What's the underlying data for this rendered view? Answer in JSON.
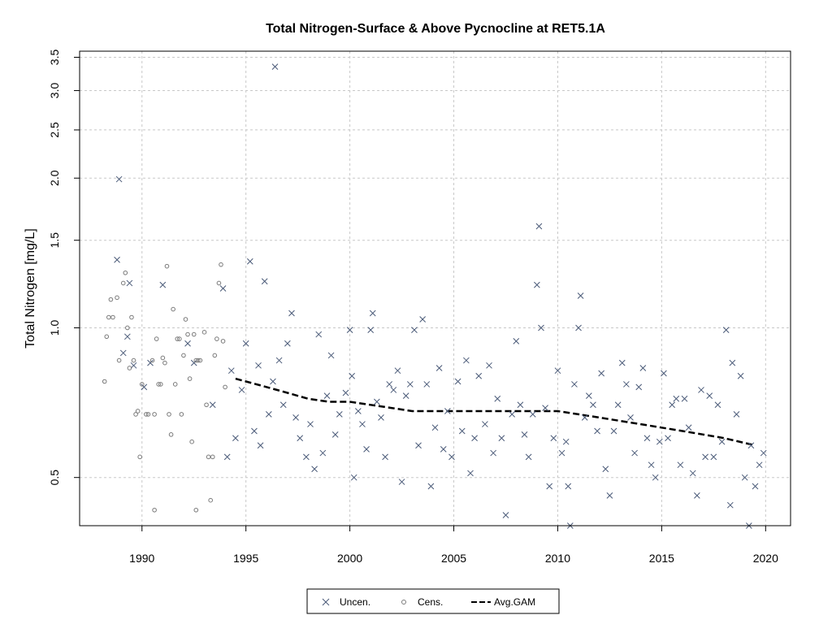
{
  "chart_data": {
    "type": "scatter",
    "title": "Total Nitrogen-Surface & Above Pycnocline at RET5.1A",
    "xlabel": "",
    "ylabel": "Total Nitrogen [mg/L]",
    "x_scale": "linear",
    "y_scale": "log",
    "xlim": [
      1987.0,
      2021.2
    ],
    "ylim": [
      0.4,
      3.6
    ],
    "x_ticks": [
      1990,
      1995,
      2000,
      2005,
      2010,
      2015,
      2020
    ],
    "x_tick_labels": [
      "1990",
      "1995",
      "2000",
      "2005",
      "2010",
      "2015",
      "2020"
    ],
    "y_ticks": [
      0.5,
      1.0,
      1.5,
      2.0,
      2.5,
      3.0,
      3.5
    ],
    "y_tick_labels": [
      "0.5",
      "1.0",
      "1.5",
      "2.0",
      "2.5",
      "3.0",
      "3.5"
    ],
    "grid": true,
    "legend": {
      "position": "bottom-center",
      "entries": [
        "Uncen.",
        "Cens.",
        "Avg.GAM"
      ]
    },
    "series": [
      {
        "name": "Uncen.",
        "marker": "x",
        "color": "#4a5a78",
        "points": [
          [
            1988.8,
            1.37
          ],
          [
            1988.9,
            1.99
          ],
          [
            1989.1,
            0.89
          ],
          [
            1989.3,
            0.96
          ],
          [
            1989.4,
            1.23
          ],
          [
            1989.6,
            0.84
          ],
          [
            1990.1,
            0.76
          ],
          [
            1990.4,
            0.85
          ],
          [
            1991.0,
            1.22
          ],
          [
            1992.2,
            0.93
          ],
          [
            1992.5,
            0.85
          ],
          [
            1993.4,
            0.7
          ],
          [
            1993.9,
            1.2
          ],
          [
            1994.1,
            0.55
          ],
          [
            1994.3,
            0.82
          ],
          [
            1994.5,
            0.6
          ],
          [
            1994.8,
            0.75
          ],
          [
            1995.0,
            0.93
          ],
          [
            1995.2,
            1.36
          ],
          [
            1995.4,
            0.62
          ],
          [
            1995.6,
            0.84
          ],
          [
            1995.7,
            0.58
          ],
          [
            1995.9,
            1.24
          ],
          [
            1996.1,
            0.67
          ],
          [
            1996.3,
            0.78
          ],
          [
            1996.4,
            3.35
          ],
          [
            1996.6,
            0.86
          ],
          [
            1996.8,
            0.7
          ],
          [
            1997.0,
            0.93
          ],
          [
            1997.2,
            1.07
          ],
          [
            1997.4,
            0.66
          ],
          [
            1997.6,
            0.6
          ],
          [
            1997.9,
            0.55
          ],
          [
            1998.1,
            0.64
          ],
          [
            1998.3,
            0.52
          ],
          [
            1998.5,
            0.97
          ],
          [
            1998.7,
            0.56
          ],
          [
            1998.9,
            0.73
          ],
          [
            1999.1,
            0.88
          ],
          [
            1999.3,
            0.61
          ],
          [
            1999.5,
            0.67
          ],
          [
            1999.8,
            0.74
          ],
          [
            2000.0,
            0.99
          ],
          [
            2000.1,
            0.8
          ],
          [
            2000.2,
            0.5
          ],
          [
            2000.4,
            0.68
          ],
          [
            2000.6,
            0.64
          ],
          [
            2000.8,
            0.57
          ],
          [
            2001.0,
            0.99
          ],
          [
            2001.1,
            1.07
          ],
          [
            2001.3,
            0.71
          ],
          [
            2001.5,
            0.66
          ],
          [
            2001.7,
            0.55
          ],
          [
            2001.9,
            0.77
          ],
          [
            2002.1,
            0.75
          ],
          [
            2002.3,
            0.82
          ],
          [
            2002.5,
            0.49
          ],
          [
            2002.7,
            0.73
          ],
          [
            2002.9,
            0.77
          ],
          [
            2003.1,
            0.99
          ],
          [
            2003.3,
            0.58
          ],
          [
            2003.5,
            1.04
          ],
          [
            2003.7,
            0.77
          ],
          [
            2003.9,
            0.48
          ],
          [
            2004.1,
            0.63
          ],
          [
            2004.3,
            0.83
          ],
          [
            2004.5,
            0.57
          ],
          [
            2004.7,
            0.68
          ],
          [
            2004.9,
            0.55
          ],
          [
            2005.2,
            0.78
          ],
          [
            2005.4,
            0.62
          ],
          [
            2005.6,
            0.86
          ],
          [
            2005.8,
            0.51
          ],
          [
            2006.0,
            0.6
          ],
          [
            2006.2,
            0.8
          ],
          [
            2006.5,
            0.64
          ],
          [
            2006.7,
            0.84
          ],
          [
            2006.9,
            0.56
          ],
          [
            2007.1,
            0.72
          ],
          [
            2007.3,
            0.6
          ],
          [
            2007.5,
            0.42
          ],
          [
            2007.8,
            0.67
          ],
          [
            2008.0,
            0.94
          ],
          [
            2008.2,
            0.7
          ],
          [
            2008.4,
            0.61
          ],
          [
            2008.6,
            0.55
          ],
          [
            2008.8,
            0.67
          ],
          [
            2009.0,
            1.22
          ],
          [
            2009.1,
            1.6
          ],
          [
            2009.2,
            1.0
          ],
          [
            2009.4,
            0.69
          ],
          [
            2009.6,
            0.48
          ],
          [
            2009.8,
            0.6
          ],
          [
            2010.0,
            0.82
          ],
          [
            2010.2,
            0.56
          ],
          [
            2010.4,
            0.59
          ],
          [
            2010.5,
            0.48
          ],
          [
            2010.6,
            0.4
          ],
          [
            2010.8,
            0.77
          ],
          [
            2011.0,
            1.0
          ],
          [
            2011.1,
            1.16
          ],
          [
            2011.3,
            0.66
          ],
          [
            2011.5,
            0.73
          ],
          [
            2011.7,
            0.7
          ],
          [
            2011.9,
            0.62
          ],
          [
            2012.1,
            0.81
          ],
          [
            2012.3,
            0.52
          ],
          [
            2012.5,
            0.46
          ],
          [
            2012.7,
            0.62
          ],
          [
            2012.9,
            0.7
          ],
          [
            2013.1,
            0.85
          ],
          [
            2013.3,
            0.77
          ],
          [
            2013.5,
            0.66
          ],
          [
            2013.7,
            0.56
          ],
          [
            2013.9,
            0.76
          ],
          [
            2014.1,
            0.83
          ],
          [
            2014.3,
            0.6
          ],
          [
            2014.5,
            0.53
          ],
          [
            2014.7,
            0.5
          ],
          [
            2014.9,
            0.59
          ],
          [
            2015.1,
            0.81
          ],
          [
            2015.3,
            0.6
          ],
          [
            2015.5,
            0.7
          ],
          [
            2015.7,
            0.72
          ],
          [
            2015.9,
            0.53
          ],
          [
            2016.1,
            0.72
          ],
          [
            2016.3,
            0.63
          ],
          [
            2016.5,
            0.51
          ],
          [
            2016.7,
            0.46
          ],
          [
            2016.9,
            0.75
          ],
          [
            2017.1,
            0.55
          ],
          [
            2017.3,
            0.73
          ],
          [
            2017.5,
            0.55
          ],
          [
            2017.7,
            0.7
          ],
          [
            2017.9,
            0.59
          ],
          [
            2018.1,
            0.99
          ],
          [
            2018.3,
            0.44
          ],
          [
            2018.4,
            0.85
          ],
          [
            2018.6,
            0.67
          ],
          [
            2018.8,
            0.8
          ],
          [
            2019.0,
            0.5
          ],
          [
            2019.2,
            0.4
          ],
          [
            2019.3,
            0.58
          ],
          [
            2019.5,
            0.48
          ],
          [
            2019.7,
            0.53
          ],
          [
            2019.9,
            0.56
          ]
        ]
      },
      {
        "name": "Cens.",
        "marker": "o",
        "color": "#7a7a7a",
        "points": [
          [
            1988.2,
            0.78
          ],
          [
            1988.3,
            0.96
          ],
          [
            1988.4,
            1.05
          ],
          [
            1988.5,
            1.14
          ],
          [
            1988.6,
            1.05
          ],
          [
            1988.8,
            1.15
          ],
          [
            1988.9,
            0.86
          ],
          [
            1989.1,
            1.23
          ],
          [
            1989.2,
            1.29
          ],
          [
            1989.3,
            1.0
          ],
          [
            1989.4,
            0.83
          ],
          [
            1989.5,
            1.05
          ],
          [
            1989.6,
            0.86
          ],
          [
            1989.7,
            0.67
          ],
          [
            1989.8,
            0.68
          ],
          [
            1989.9,
            0.55
          ],
          [
            1990.0,
            0.77
          ],
          [
            1990.2,
            0.67
          ],
          [
            1990.3,
            0.67
          ],
          [
            1990.5,
            0.86
          ],
          [
            1990.6,
            0.67
          ],
          [
            1990.6,
            0.43
          ],
          [
            1990.7,
            0.95
          ],
          [
            1990.8,
            0.77
          ],
          [
            1990.9,
            0.77
          ],
          [
            1991.0,
            0.87
          ],
          [
            1991.1,
            0.85
          ],
          [
            1991.2,
            1.33
          ],
          [
            1991.3,
            0.67
          ],
          [
            1991.4,
            0.61
          ],
          [
            1991.5,
            1.09
          ],
          [
            1991.6,
            0.77
          ],
          [
            1991.7,
            0.95
          ],
          [
            1991.8,
            0.95
          ],
          [
            1991.9,
            0.67
          ],
          [
            1992.0,
            0.88
          ],
          [
            1992.1,
            1.04
          ],
          [
            1992.2,
            0.97
          ],
          [
            1992.3,
            0.79
          ],
          [
            1992.4,
            0.59
          ],
          [
            1992.5,
            0.97
          ],
          [
            1992.6,
            0.86
          ],
          [
            1992.6,
            0.43
          ],
          [
            1992.7,
            0.86
          ],
          [
            1992.8,
            0.86
          ],
          [
            1993.0,
            0.98
          ],
          [
            1993.1,
            0.7
          ],
          [
            1993.2,
            0.55
          ],
          [
            1993.3,
            0.45
          ],
          [
            1993.4,
            0.55
          ],
          [
            1993.5,
            0.88
          ],
          [
            1993.6,
            0.95
          ],
          [
            1993.7,
            1.23
          ],
          [
            1993.8,
            1.34
          ],
          [
            1993.9,
            0.94
          ],
          [
            1994.0,
            0.76
          ]
        ]
      },
      {
        "name": "Avg.GAM",
        "marker": "line",
        "color": "#000000",
        "points": [
          [
            1994.5,
            0.79
          ],
          [
            1995.0,
            0.78
          ],
          [
            1996.0,
            0.76
          ],
          [
            1997.0,
            0.74
          ],
          [
            1998.0,
            0.72
          ],
          [
            1999.0,
            0.71
          ],
          [
            2000.0,
            0.71
          ],
          [
            2001.0,
            0.7
          ],
          [
            2002.0,
            0.69
          ],
          [
            2003.0,
            0.68
          ],
          [
            2004.0,
            0.68
          ],
          [
            2005.0,
            0.68
          ],
          [
            2006.0,
            0.68
          ],
          [
            2007.0,
            0.68
          ],
          [
            2008.0,
            0.68
          ],
          [
            2009.0,
            0.68
          ],
          [
            2010.0,
            0.68
          ],
          [
            2011.0,
            0.67
          ],
          [
            2012.0,
            0.66
          ],
          [
            2013.0,
            0.65
          ],
          [
            2014.0,
            0.64
          ],
          [
            2015.0,
            0.63
          ],
          [
            2016.0,
            0.62
          ],
          [
            2017.0,
            0.61
          ],
          [
            2018.0,
            0.6
          ],
          [
            2019.5,
            0.58
          ]
        ]
      }
    ]
  }
}
